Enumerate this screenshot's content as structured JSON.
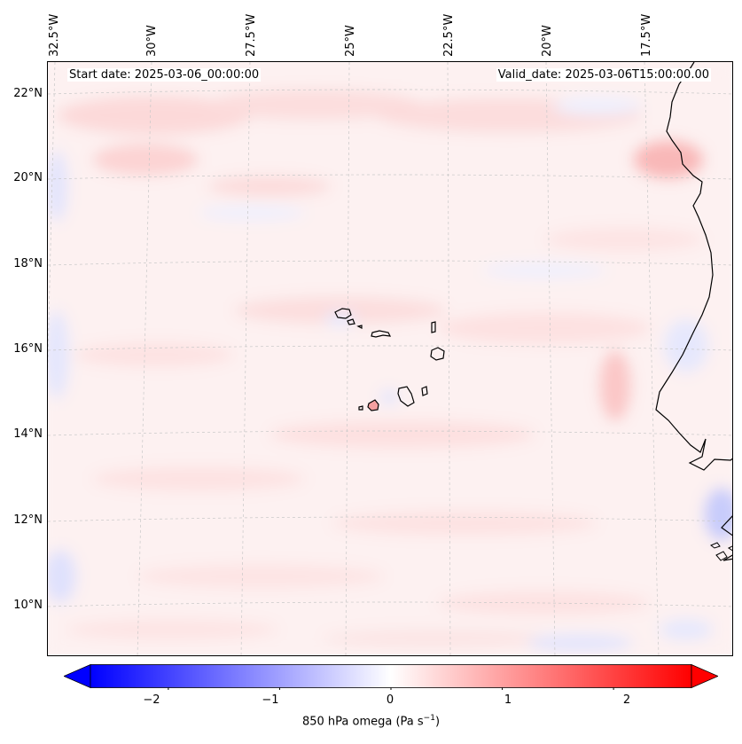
{
  "map": {
    "start_label": "Start date: 2025-03-06_00:00:00",
    "valid_label": "Valid_date: 2025-03-06T15:00:00.00",
    "longitude_labels": [
      "32.5°W",
      "30°W",
      "27.5°W",
      "25°W",
      "22.5°W",
      "20°W",
      "17.5°W"
    ],
    "latitude_labels": [
      "22°N",
      "20°N",
      "18°N",
      "16°N",
      "14°N",
      "12°N",
      "10°N"
    ],
    "colors": {
      "background_tint": "#fdf3f3",
      "coastline": "#000000",
      "gridline": "#c8c8c8"
    }
  },
  "colorbar": {
    "label_main": "850 hPa omega (Pa s",
    "label_sup": "−1",
    "label_end": ")",
    "ticks": [
      "−2",
      "−1",
      "0",
      "1",
      "2"
    ],
    "range": [
      -2.7,
      2.7
    ],
    "colormap": "bwr",
    "colors": {
      "low": "#0000ff",
      "mid": "#ffffff",
      "high": "#ff0000"
    }
  }
}
